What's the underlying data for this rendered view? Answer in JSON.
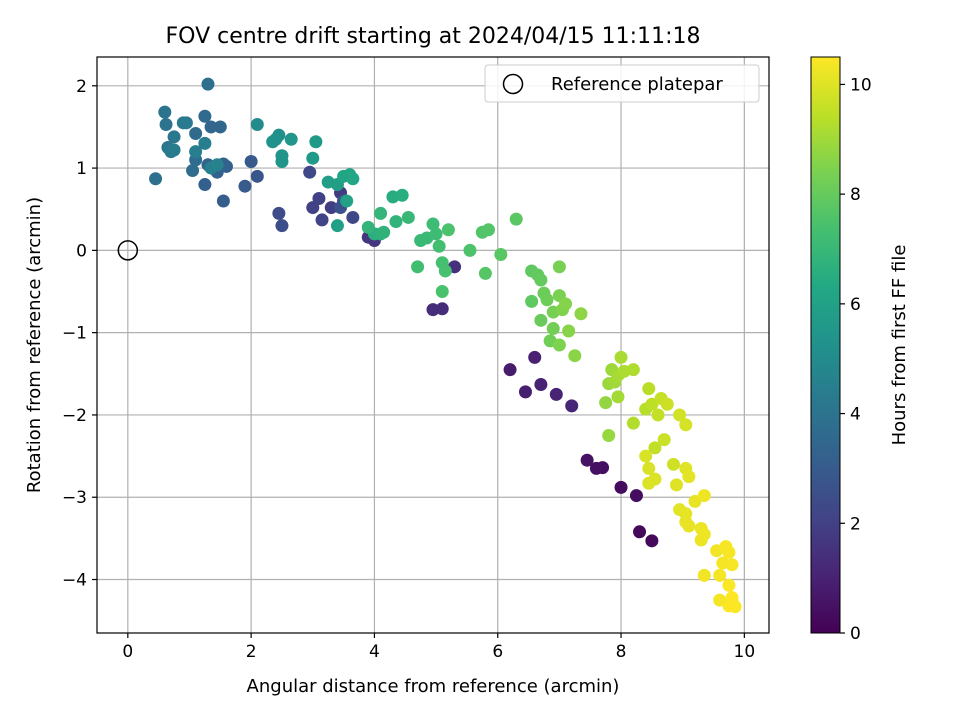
{
  "chart_data": {
    "type": "scatter",
    "title": "FOV centre drift starting at 2024/04/15 11:11:18",
    "xlabel": "Angular distance from reference (arcmin)",
    "ylabel": "Rotation from reference (arcmin)",
    "xlim": [
      -0.5,
      10.4
    ],
    "ylim": [
      -4.65,
      2.35
    ],
    "xticks": [
      0,
      2,
      4,
      6,
      8,
      10
    ],
    "xtick_labels": [
      "0",
      "2",
      "4",
      "6",
      "8",
      "10"
    ],
    "yticks": [
      2,
      1,
      0,
      -1,
      -2,
      -3,
      -4
    ],
    "ytick_labels": [
      "2",
      "1",
      "0",
      "−1",
      "−2",
      "−3",
      "−4"
    ],
    "grid": true,
    "legend": {
      "placement": "top-right",
      "entries": [
        "Reference platepar"
      ]
    },
    "reference_point": {
      "name": "Reference platepar",
      "x": 0,
      "y": 0
    },
    "colorbar": {
      "label": "Hours from first FF file",
      "range": [
        0,
        10.5
      ],
      "ticks": [
        0,
        2,
        4,
        6,
        8,
        10
      ],
      "tick_labels": [
        "0",
        "2",
        "4",
        "6",
        "8",
        "10"
      ],
      "colormap": "viridis"
    },
    "points": [
      [
        8.3,
        -3.42,
        0.2
      ],
      [
        8.5,
        -3.53,
        0.25
      ],
      [
        8.0,
        -2.88,
        0.3
      ],
      [
        8.25,
        -2.98,
        0.35
      ],
      [
        7.7,
        -2.64,
        0.4
      ],
      [
        7.6,
        -2.65,
        0.45
      ],
      [
        7.45,
        -2.55,
        0.5
      ],
      [
        6.2,
        -1.45,
        0.8
      ],
      [
        6.45,
        -1.72,
        0.9
      ],
      [
        6.6,
        -1.3,
        0.95
      ],
      [
        6.7,
        -1.63,
        1.0
      ],
      [
        6.95,
        -1.75,
        1.05
      ],
      [
        7.2,
        -1.89,
        1.1
      ],
      [
        4.95,
        -0.72,
        1.3
      ],
      [
        5.1,
        -0.71,
        1.35
      ],
      [
        5.3,
        -0.2,
        1.4
      ],
      [
        3.9,
        0.16,
        1.6
      ],
      [
        4.0,
        0.12,
        1.65
      ],
      [
        3.5,
        0.6,
        1.75
      ],
      [
        3.45,
        0.7,
        1.8
      ],
      [
        3.3,
        0.52,
        1.9
      ],
      [
        3.0,
        0.52,
        2.0
      ],
      [
        3.1,
        0.63,
        2.05
      ],
      [
        3.15,
        0.37,
        2.1
      ],
      [
        3.65,
        0.4,
        2.2
      ],
      [
        2.95,
        0.95,
        2.3
      ],
      [
        2.45,
        0.45,
        2.4
      ],
      [
        2.5,
        0.3,
        2.5
      ],
      [
        3.45,
        0.52,
        2.55
      ],
      [
        3.5,
        0.6,
        2.6
      ],
      [
        2.1,
        0.9,
        2.8
      ],
      [
        2.0,
        1.08,
        2.9
      ],
      [
        1.9,
        0.78,
        3.0
      ],
      [
        1.55,
        0.6,
        3.1
      ],
      [
        1.6,
        1.02,
        3.15
      ],
      [
        1.25,
        0.8,
        3.2
      ],
      [
        1.45,
        0.95,
        3.25
      ],
      [
        1.55,
        1.05,
        3.3
      ],
      [
        1.3,
        1.04,
        3.35
      ],
      [
        1.35,
        1.5,
        3.45
      ],
      [
        1.5,
        1.5,
        3.5
      ],
      [
        1.25,
        1.63,
        3.6
      ],
      [
        1.1,
        1.42,
        3.65
      ],
      [
        1.05,
        0.97,
        3.7
      ],
      [
        1.1,
        1.1,
        3.75
      ],
      [
        1.3,
        2.02,
        3.8
      ],
      [
        0.45,
        0.87,
        3.9
      ],
      [
        0.6,
        1.68,
        4.0
      ],
      [
        0.62,
        1.53,
        4.05
      ],
      [
        0.65,
        1.25,
        4.1
      ],
      [
        0.75,
        1.38,
        4.15
      ],
      [
        0.7,
        1.2,
        4.2
      ],
      [
        0.9,
        1.55,
        4.25
      ],
      [
        0.95,
        1.55,
        4.3
      ],
      [
        0.75,
        1.22,
        4.35
      ],
      [
        1.1,
        1.2,
        4.45
      ],
      [
        1.25,
        1.3,
        4.5
      ],
      [
        1.35,
        1.0,
        4.55
      ],
      [
        1.45,
        1.04,
        4.6
      ],
      [
        2.1,
        1.53,
        5.0
      ],
      [
        2.45,
        1.4,
        5.2
      ],
      [
        2.4,
        1.35,
        5.25
      ],
      [
        2.35,
        1.32,
        5.3
      ],
      [
        2.5,
        1.15,
        5.4
      ],
      [
        2.5,
        1.08,
        5.45
      ],
      [
        2.65,
        1.35,
        5.5
      ],
      [
        3.05,
        1.32,
        5.6
      ],
      [
        3.0,
        1.12,
        5.7
      ],
      [
        3.25,
        0.83,
        5.8
      ],
      [
        3.4,
        0.8,
        5.85
      ],
      [
        3.4,
        0.3,
        5.9
      ],
      [
        3.55,
        0.6,
        6.0
      ],
      [
        3.5,
        0.9,
        6.1
      ],
      [
        3.6,
        0.92,
        6.15
      ],
      [
        3.65,
        0.87,
        6.2
      ],
      [
        4.3,
        0.65,
        6.5
      ],
      [
        4.45,
        0.67,
        6.55
      ],
      [
        4.0,
        0.2,
        6.6
      ],
      [
        4.1,
        0.2,
        6.7
      ],
      [
        4.15,
        0.22,
        6.75
      ],
      [
        4.35,
        0.35,
        6.8
      ],
      [
        3.9,
        0.28,
        6.85
      ],
      [
        4.1,
        0.45,
        6.9
      ],
      [
        4.55,
        0.4,
        7.0
      ],
      [
        4.75,
        0.12,
        7.05
      ],
      [
        4.85,
        0.15,
        7.1
      ],
      [
        4.95,
        0.32,
        7.15
      ],
      [
        5.0,
        0.2,
        7.2
      ],
      [
        4.7,
        -0.2,
        7.25
      ],
      [
        5.05,
        0.05,
        7.3
      ],
      [
        5.1,
        -0.15,
        7.35
      ],
      [
        5.15,
        -0.25,
        7.4
      ],
      [
        5.1,
        -0.5,
        7.45
      ],
      [
        5.2,
        0.25,
        7.5
      ],
      [
        5.55,
        0.0,
        7.55
      ],
      [
        5.75,
        0.22,
        7.6
      ],
      [
        5.85,
        0.25,
        7.65
      ],
      [
        5.8,
        -0.28,
        7.7
      ],
      [
        6.05,
        -0.05,
        7.75
      ],
      [
        6.3,
        0.38,
        7.8
      ],
      [
        6.55,
        -0.62,
        7.85
      ],
      [
        6.55,
        -0.25,
        7.9
      ],
      [
        6.65,
        -0.3,
        7.95
      ],
      [
        6.7,
        -0.36,
        8.0
      ],
      [
        6.7,
        -0.85,
        8.05
      ],
      [
        6.75,
        -0.52,
        8.1
      ],
      [
        6.8,
        -0.6,
        8.15
      ],
      [
        6.85,
        -1.1,
        8.2
      ],
      [
        6.9,
        -0.95,
        8.25
      ],
      [
        6.9,
        -0.75,
        8.3
      ],
      [
        7.0,
        -0.2,
        8.35
      ],
      [
        7.0,
        -0.55,
        8.4
      ],
      [
        7.0,
        -1.15,
        8.45
      ],
      [
        7.05,
        -0.72,
        8.5
      ],
      [
        7.1,
        -0.65,
        8.55
      ],
      [
        7.15,
        -0.98,
        8.6
      ],
      [
        7.25,
        -1.28,
        8.65
      ],
      [
        7.35,
        -0.77,
        8.7
      ],
      [
        7.75,
        -1.85,
        8.8
      ],
      [
        7.8,
        -2.25,
        8.85
      ],
      [
        7.8,
        -1.62,
        8.9
      ],
      [
        7.85,
        -1.45,
        8.95
      ],
      [
        7.9,
        -1.6,
        9.0
      ],
      [
        7.95,
        -1.78,
        9.05
      ],
      [
        7.95,
        -1.52,
        9.1
      ],
      [
        8.0,
        -1.3,
        9.15
      ],
      [
        8.05,
        -1.47,
        9.2
      ],
      [
        8.2,
        -1.45,
        9.25
      ],
      [
        8.2,
        -2.1,
        9.3
      ],
      [
        8.4,
        -1.93,
        9.35
      ],
      [
        8.45,
        -1.68,
        9.4
      ],
      [
        8.5,
        -1.87,
        9.45
      ],
      [
        8.55,
        -2.4,
        9.5
      ],
      [
        8.6,
        -2.0,
        9.55
      ],
      [
        8.65,
        -1.8,
        9.6
      ],
      [
        8.7,
        -2.3,
        9.65
      ],
      [
        8.75,
        -1.87,
        9.7
      ],
      [
        8.85,
        -2.6,
        9.75
      ],
      [
        8.95,
        -2.0,
        9.8
      ],
      [
        9.05,
        -2.12,
        9.85
      ],
      [
        8.4,
        -2.5,
        9.9
      ],
      [
        8.45,
        -2.65,
        9.9
      ],
      [
        8.55,
        -2.78,
        9.95
      ],
      [
        8.45,
        -2.83,
        9.95
      ],
      [
        8.9,
        -2.85,
        10.0
      ],
      [
        9.05,
        -2.65,
        10.0
      ],
      [
        9.1,
        -2.75,
        10.05
      ],
      [
        8.95,
        -3.15,
        10.05
      ],
      [
        9.05,
        -3.2,
        10.1
      ],
      [
        9.05,
        -3.3,
        10.1
      ],
      [
        9.1,
        -3.35,
        10.15
      ],
      [
        9.2,
        -3.05,
        10.15
      ],
      [
        9.3,
        -3.38,
        10.2
      ],
      [
        9.3,
        -3.52,
        10.2
      ],
      [
        9.35,
        -3.45,
        10.25
      ],
      [
        9.35,
        -2.98,
        10.25
      ],
      [
        9.35,
        -3.95,
        10.3
      ],
      [
        9.55,
        -3.65,
        10.3
      ],
      [
        9.65,
        -3.8,
        10.35
      ],
      [
        9.6,
        -3.95,
        10.35
      ],
      [
        9.6,
        -4.25,
        10.35
      ],
      [
        9.7,
        -3.6,
        10.4
      ],
      [
        9.75,
        -3.67,
        10.4
      ],
      [
        9.8,
        -3.82,
        10.4
      ],
      [
        9.75,
        -4.07,
        10.45
      ],
      [
        9.8,
        -4.25,
        10.45
      ],
      [
        9.85,
        -4.33,
        10.45
      ],
      [
        9.75,
        -4.32,
        10.5
      ],
      [
        9.8,
        -4.22,
        10.5
      ]
    ]
  }
}
